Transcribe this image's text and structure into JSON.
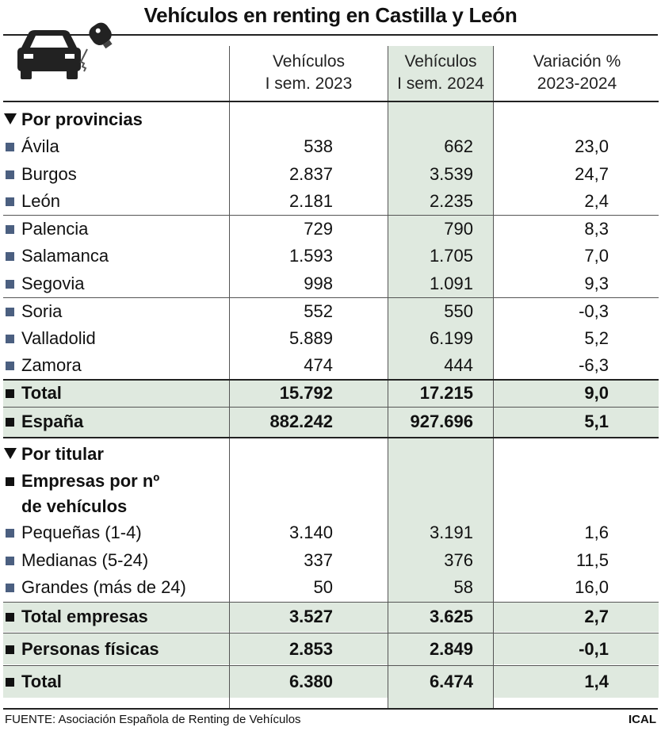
{
  "title": "Vehículos en renting en Castilla y León",
  "icon": "car-key-icon",
  "columns": [
    {
      "line1": "Vehículos",
      "line2": "I sem. 2023"
    },
    {
      "line1": "Vehículos",
      "line2": "I sem. 2024"
    },
    {
      "line1": "Variación %",
      "line2": "2023-2024"
    }
  ],
  "section_provincias": "Por provincias",
  "provincias": [
    {
      "name": "Ávila",
      "v2023": "538",
      "v2024": "662",
      "var": "23,0"
    },
    {
      "name": "Burgos",
      "v2023": "2.837",
      "v2024": "3.539",
      "var": "24,7"
    },
    {
      "name": "León",
      "v2023": "2.181",
      "v2024": "2.235",
      "var": "2,4"
    },
    {
      "name": "Palencia",
      "v2023": "729",
      "v2024": "790",
      "var": "8,3"
    },
    {
      "name": "Salamanca",
      "v2023": "1.593",
      "v2024": "1.705",
      "var": "7,0"
    },
    {
      "name": "Segovia",
      "v2023": "998",
      "v2024": "1.091",
      "var": "9,3"
    },
    {
      "name": "Soria",
      "v2023": "552",
      "v2024": "550",
      "var": "-0,3"
    },
    {
      "name": "Valladolid",
      "v2023": "5.889",
      "v2024": "6.199",
      "var": "5,2"
    },
    {
      "name": "Zamora",
      "v2023": "474",
      "v2024": "444",
      "var": "-6,3"
    }
  ],
  "total_provincias": {
    "name": "Total",
    "v2023": "15.792",
    "v2024": "17.215",
    "var": "9,0"
  },
  "espana": {
    "name": "España",
    "v2023": "882.242",
    "v2024": "927.696",
    "var": "5,1"
  },
  "section_titular": "Por titular",
  "empresas_heading": {
    "line1": "Empresas por nº",
    "line2": "de vehículos"
  },
  "empresas": [
    {
      "name": "Pequeñas (1-4)",
      "v2023": "3.140",
      "v2024": "3.191",
      "var": "1,6"
    },
    {
      "name": "Medianas (5-24)",
      "v2023": "337",
      "v2024": "376",
      "var": "11,5"
    },
    {
      "name": "Grandes (más de 24)",
      "v2023": "50",
      "v2024": "58",
      "var": "16,0"
    }
  ],
  "total_empresas": {
    "name": "Total empresas",
    "v2023": "3.527",
    "v2024": "3.625",
    "var": "2,7"
  },
  "personas": {
    "name": "Personas físicas",
    "v2023": "2.853",
    "v2024": "2.849",
    "var": "-0,1"
  },
  "total_titular": {
    "name": "Total",
    "v2023": "6.380",
    "v2024": "6.474",
    "var": "1,4"
  },
  "source": "FUENTE: Asociación Española de Renting de Vehículos",
  "brand": "ICAL",
  "colors": {
    "highlight": "#dfe9df",
    "bullet": "#4b5f80"
  },
  "chart_data": {
    "type": "table",
    "title": "Vehículos en renting en Castilla y León",
    "columns": [
      "Vehículos I sem. 2023",
      "Vehículos I sem. 2024",
      "Variación % 2023-2024"
    ],
    "rows": [
      [
        "Ávila",
        538,
        662,
        23.0
      ],
      [
        "Burgos",
        2837,
        3539,
        24.7
      ],
      [
        "León",
        2181,
        2235,
        2.4
      ],
      [
        "Palencia",
        729,
        790,
        8.3
      ],
      [
        "Salamanca",
        1593,
        1705,
        7.0
      ],
      [
        "Segovia",
        998,
        1091,
        9.3
      ],
      [
        "Soria",
        552,
        550,
        -0.3
      ],
      [
        "Valladolid",
        5889,
        6199,
        5.2
      ],
      [
        "Zamora",
        474,
        444,
        -6.3
      ],
      [
        "Total",
        15792,
        17215,
        9.0
      ],
      [
        "España",
        882242,
        927696,
        5.1
      ],
      [
        "Pequeñas (1-4)",
        3140,
        3191,
        1.6
      ],
      [
        "Medianas (5-24)",
        337,
        376,
        11.5
      ],
      [
        "Grandes (más de 24)",
        50,
        58,
        16.0
      ],
      [
        "Total empresas",
        3527,
        3625,
        2.7
      ],
      [
        "Personas físicas",
        2853,
        2849,
        -0.1
      ],
      [
        "Total",
        6380,
        6474,
        1.4
      ]
    ]
  }
}
